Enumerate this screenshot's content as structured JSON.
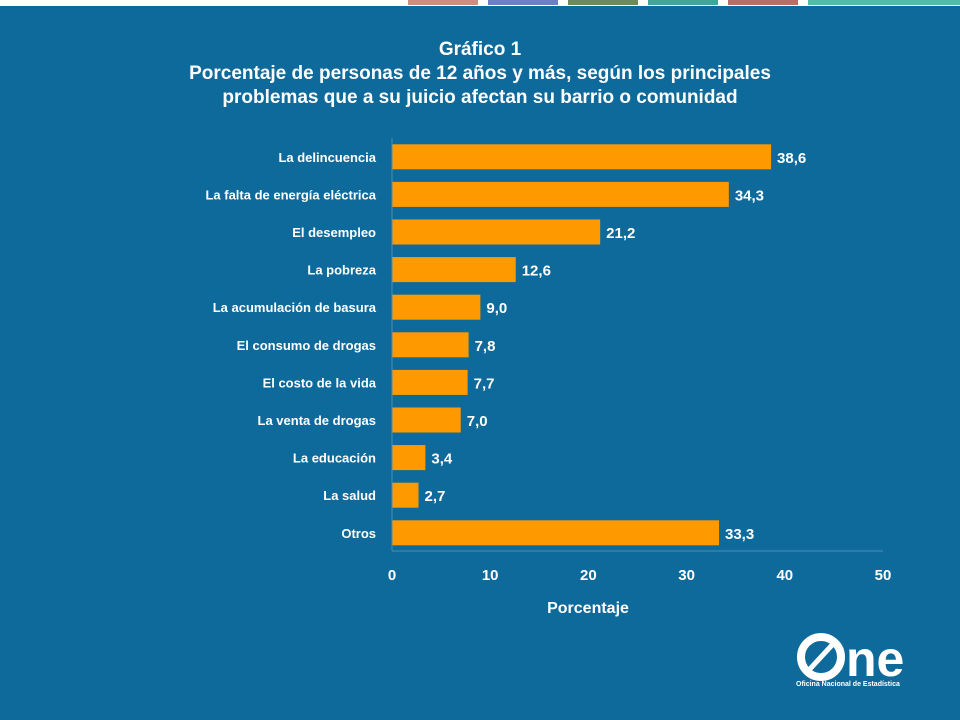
{
  "header": {
    "tab_colors": [
      "#c98f82",
      "#6e7fc4",
      "#6e8a5a",
      "#3ea79a",
      "#b86f6a",
      "#4dbfa6"
    ]
  },
  "title": {
    "line1": "Gráfico 1",
    "line2": "Porcentaje de personas de 12 años y más, según los principales",
    "line3": "problemas que a su juicio afectan su barrio o comunidad"
  },
  "chart_data": {
    "type": "bar",
    "orientation": "horizontal",
    "categories": [
      "La delincuencia",
      "La falta de energía eléctrica",
      "El desempleo",
      "La pobreza",
      "La acumulación de basura",
      "El consumo de drogas",
      "El costo de la vida",
      "La venta de drogas",
      "La educación",
      "La salud",
      "Otros"
    ],
    "values": [
      38.6,
      34.3,
      21.2,
      12.6,
      9.0,
      7.8,
      7.7,
      7.0,
      3.4,
      2.7,
      33.3
    ],
    "value_labels": [
      "38,6",
      "34,3",
      "21,2",
      "12,6",
      "9,0",
      "7,8",
      "7,7",
      "7,0",
      "3,4",
      "2,7",
      "33,3"
    ],
    "xlabel": "Porcentaje",
    "xlim": [
      0,
      50
    ],
    "xticks": [
      0,
      10,
      20,
      30,
      40,
      50
    ],
    "xtick_labels": [
      "0",
      "10",
      "20",
      "30",
      "40",
      "50"
    ],
    "grid": false,
    "bar_color": "#ff9900"
  },
  "logo": {
    "text": "ne",
    "caption": "Oficina Nacional de Estadística",
    "icon": "one-logo-icon"
  }
}
